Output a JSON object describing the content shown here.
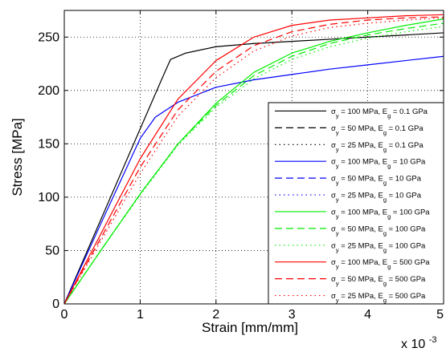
{
  "chart_data": {
    "type": "line",
    "title": "",
    "xlabel": "Strain [mm/mm]",
    "ylabel": "Stress [MPa]",
    "x_multiplier_label": {
      "base": "x 10",
      "exponent": "-3"
    },
    "xlim": [
      0,
      5
    ],
    "ylim": [
      0,
      275
    ],
    "xticks": [
      0,
      1,
      2,
      3,
      4,
      5
    ],
    "yticks": [
      0,
      50,
      100,
      150,
      200,
      250
    ],
    "grid": true,
    "grid_style": "dotted",
    "legend_position": "lower-right",
    "series": [
      {
        "name": "σy = 100 MPa, Eg = 0.1 GPa",
        "sigma": "100",
        "Eg": "0.1",
        "color": "#000000",
        "dash": "solid",
        "x": [
          0,
          0.5,
          1.0,
          1.3,
          1.4,
          1.6,
          2.0,
          2.5,
          3.0,
          3.5,
          4.0,
          4.5,
          5.0
        ],
        "y": [
          0,
          82,
          164,
          213,
          229,
          235,
          241,
          244,
          246,
          248,
          250,
          252,
          254
        ]
      },
      {
        "name": "σy = 50 MPa, Eg = 0.1 GPa",
        "sigma": "50",
        "Eg": "0.1",
        "color": "#000000",
        "dash": "dash",
        "x": [],
        "y": []
      },
      {
        "name": "σy = 25 MPa, Eg = 0.1 GPa",
        "sigma": "25",
        "Eg": "0.1",
        "color": "#000000",
        "dash": "dot",
        "x": [],
        "y": []
      },
      {
        "name": "σy = 100 MPa, Eg = 10 GPa",
        "sigma": "100",
        "Eg": "10",
        "color": "#0000ff",
        "dash": "solid",
        "x": [
          0,
          0.5,
          1.0,
          1.2,
          1.5,
          2.0,
          2.5,
          3.0,
          3.5,
          4.0,
          4.5,
          5.0
        ],
        "y": [
          0,
          78,
          155,
          175,
          189,
          203,
          210,
          215,
          220,
          224,
          228,
          232
        ]
      },
      {
        "name": "σy = 50 MPa, Eg = 10 GPa",
        "sigma": "50",
        "Eg": "10",
        "color": "#0000ff",
        "dash": "dash",
        "x": [],
        "y": []
      },
      {
        "name": "σy = 25 MPa, Eg = 10 GPa",
        "sigma": "25",
        "Eg": "10",
        "color": "#0000ff",
        "dash": "dot",
        "x": [],
        "y": []
      },
      {
        "name": "σy = 100 MPa, Eg = 100 GPa",
        "sigma": "100",
        "Eg": "100",
        "color": "#00ee00",
        "dash": "solid",
        "x": [
          0,
          0.5,
          1.0,
          1.5,
          2.0,
          2.5,
          3.0,
          3.5,
          4.0,
          4.5,
          5.0
        ],
        "y": [
          0,
          52,
          103,
          150,
          188,
          217,
          235,
          246,
          254,
          261,
          267
        ]
      },
      {
        "name": "σy = 50 MPa, Eg = 100 GPa",
        "sigma": "50",
        "Eg": "100",
        "color": "#00ee00",
        "dash": "dash",
        "x": [
          0,
          0.5,
          1.0,
          1.5,
          2.0,
          2.5,
          3.0,
          3.5,
          4.0,
          4.5,
          5.0
        ],
        "y": [
          0,
          52,
          103,
          150,
          186,
          214,
          232,
          244,
          252,
          258,
          263
        ]
      },
      {
        "name": "σy = 25 MPa, Eg = 100 GPa",
        "sigma": "25",
        "Eg": "100",
        "color": "#00ee00",
        "dash": "dot",
        "x": [
          0,
          0.5,
          1.0,
          1.5,
          2.0,
          2.5,
          3.0,
          3.5,
          4.0,
          4.5,
          5.0
        ],
        "y": [
          0,
          52,
          102,
          149,
          184,
          211,
          229,
          241,
          249,
          255,
          260
        ]
      },
      {
        "name": "σy = 100 MPa, Eg = 500 GPa",
        "sigma": "100",
        "Eg": "500",
        "color": "#ff0000",
        "dash": "solid",
        "x": [
          0,
          0.5,
          1.0,
          1.5,
          2.0,
          2.5,
          3.0,
          3.5,
          4.0,
          4.5,
          5.0
        ],
        "y": [
          0,
          68,
          136,
          192,
          228,
          250,
          261,
          266,
          268,
          270,
          271
        ]
      },
      {
        "name": "σy = 50 MPa, Eg = 500 GPa",
        "sigma": "50",
        "Eg": "500",
        "color": "#ff0000",
        "dash": "dash",
        "x": [
          0,
          0.5,
          1.0,
          1.5,
          2.0,
          2.5,
          3.0,
          3.5,
          4.0,
          4.5,
          5.0
        ],
        "y": [
          0,
          64,
          128,
          182,
          218,
          242,
          255,
          262,
          266,
          268,
          269
        ]
      },
      {
        "name": "σy = 25 MPa, Eg = 500 GPa",
        "sigma": "25",
        "Eg": "500",
        "color": "#ff0000",
        "dash": "dot",
        "x": [
          0,
          0.5,
          1.0,
          1.5,
          2.0,
          2.5,
          3.0,
          3.5,
          4.0,
          4.5,
          5.0
        ],
        "y": [
          0,
          61,
          122,
          176,
          212,
          237,
          251,
          259,
          263,
          266,
          268
        ]
      }
    ]
  }
}
